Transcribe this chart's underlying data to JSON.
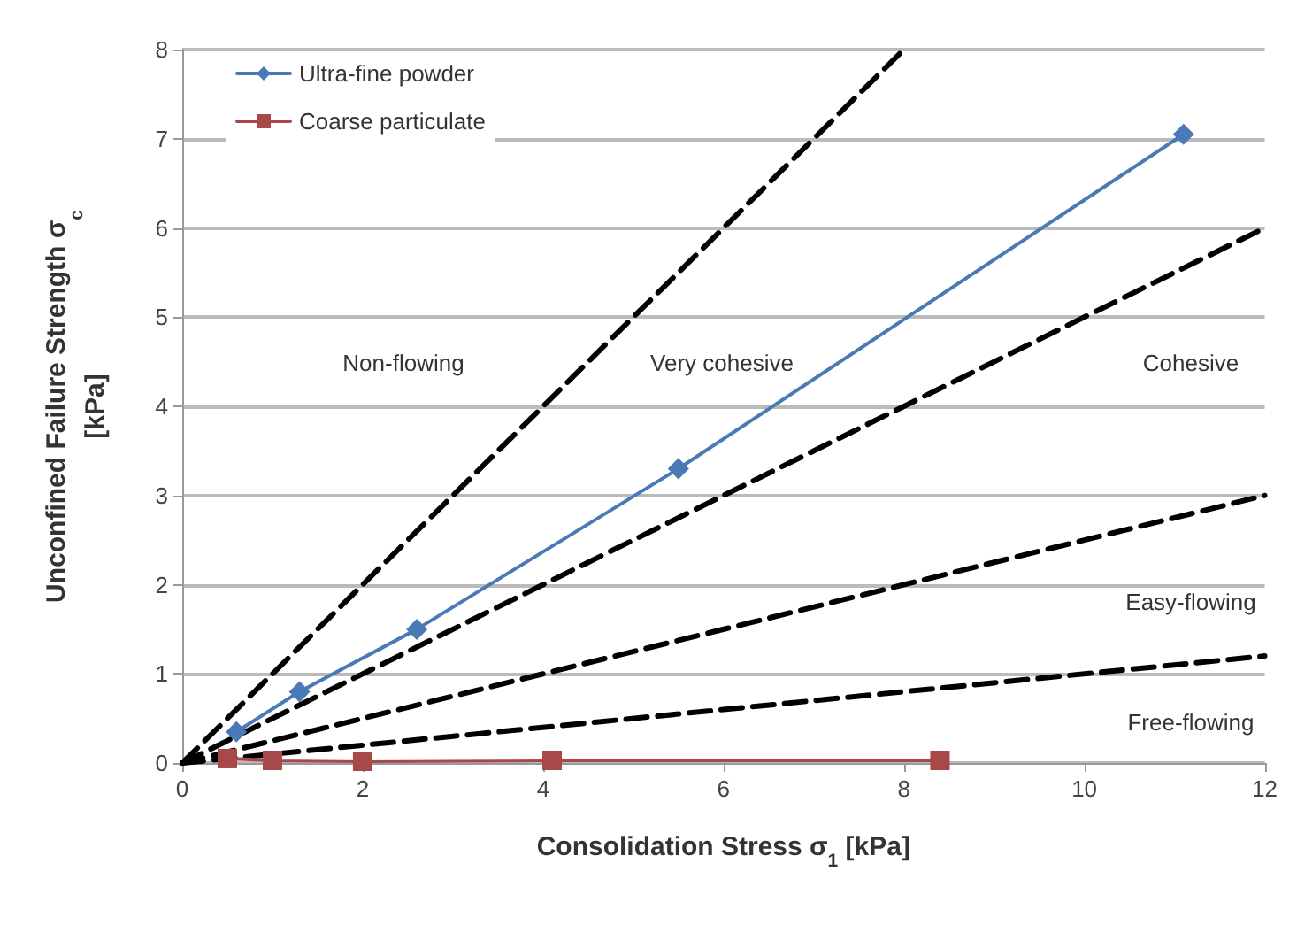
{
  "chart_data": {
    "type": "line",
    "xlabel": "Consolidation Stress σ$_{1}$ [kPa]",
    "ylabel": "Unconfined Failure Strength σ$_{c}$\n[kPa]",
    "xlim": [
      0,
      12
    ],
    "xticks": [
      0,
      2,
      4,
      6,
      8,
      10,
      12
    ],
    "ylim": [
      0,
      8
    ],
    "yticks": [
      0,
      1,
      2,
      3,
      4,
      5,
      6,
      7,
      8
    ],
    "grid": "y",
    "legend": "top left",
    "series": [
      {
        "name": "Ultra-fine powder",
        "color": "#4a7ab5",
        "marker": "diamond",
        "line_style": "solid",
        "x": [
          0.6,
          1.3,
          2.6,
          5.5,
          11.1
        ],
        "values": [
          0.35,
          0.8,
          1.5,
          3.3,
          7.05
        ]
      },
      {
        "name": "Coarse particulate",
        "color": "#a84848",
        "marker": "square",
        "line_style": "solid",
        "x": [
          0.5,
          1,
          2,
          4.1,
          8.4
        ],
        "values": [
          0.05,
          0.03,
          0.02,
          0.03,
          0.03
        ]
      },
      {
        "color": "#000000",
        "marker": "none",
        "line_style": "dashed",
        "x": [
          0,
          8
        ],
        "values": [
          0,
          8
        ]
      },
      {
        "color": "#000000",
        "marker": "none",
        "line_style": "dashed",
        "x": [
          0,
          12
        ],
        "values": [
          0,
          6
        ]
      },
      {
        "color": "#000000",
        "marker": "none",
        "line_style": "dashed",
        "x": [
          0,
          12
        ],
        "values": [
          0,
          3
        ]
      },
      {
        "color": "#000000",
        "marker": "none",
        "line_style": "dashed",
        "x": [
          0,
          12
        ],
        "values": [
          0,
          1.2
        ]
      }
    ],
    "annotations": [
      "Non-flowing",
      "Very cohesive",
      "Cohesive",
      "Easy-flowing",
      "Free-flowing"
    ]
  }
}
